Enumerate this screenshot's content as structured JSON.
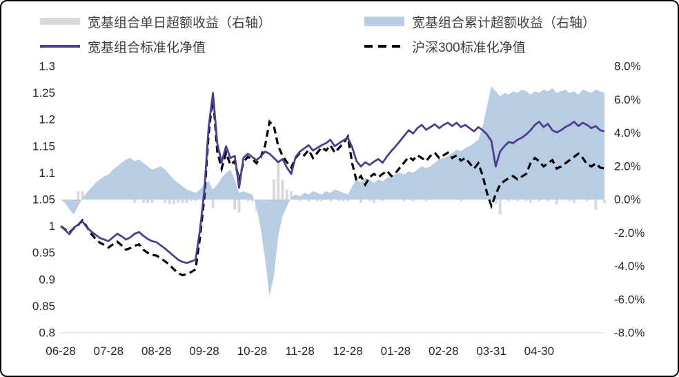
{
  "legend": {
    "items": [
      {
        "label": "宽基组合单日超额收益（右轴）",
        "type": "bar",
        "color": "#d9d9d9"
      },
      {
        "label": "宽基组合累计超额收益（右轴）",
        "type": "area",
        "color": "#b8cce4"
      },
      {
        "label": "宽基组合标准化净值",
        "type": "line",
        "color": "#4f3d8f"
      },
      {
        "label": "沪深300标准化净值",
        "type": "dashed",
        "color": "#000000"
      }
    ]
  },
  "chart_data": {
    "type": "combo",
    "grid": false,
    "legend_position": "top",
    "x_tick_labels": [
      "06-28",
      "07-28",
      "08-28",
      "09-28",
      "10-28",
      "11-28",
      "12-28",
      "01-28",
      "02-28",
      "03-31",
      "04-30"
    ],
    "x_tick_indices": [
      0,
      11,
      22,
      33,
      44,
      55,
      66,
      77,
      88,
      99,
      110
    ],
    "left_axis": {
      "min": 0.8,
      "max": 1.3,
      "tick_values": [
        1.3,
        1.25,
        1.2,
        1.15,
        1.1,
        1.05,
        1,
        0.95,
        0.9,
        0.85,
        0.8
      ],
      "tick_labels": [
        "1.3",
        "1.25",
        "1.2",
        "1.15",
        "1.1",
        "1.05",
        "1",
        "0.95",
        "0.9",
        "0.85",
        "0.8"
      ]
    },
    "right_axis": {
      "min": -8,
      "max": 8,
      "tick_values": [
        8,
        6,
        4,
        2,
        0,
        -2,
        -4,
        -6,
        -8
      ],
      "tick_labels": [
        "8.0%",
        "6.0%",
        "4.0%",
        "2.0%",
        "0.0%",
        "-2.0%",
        "-4.0%",
        "-6.0%",
        "-8.0%"
      ]
    },
    "series": [
      {
        "name": "宽基组合单日超额收益（右轴）",
        "type": "bar",
        "axis": "right",
        "color": "#d9d9d9",
        "values": [
          0.0,
          -0.2,
          -0.4,
          -0.3,
          0.5,
          0.5,
          0.3,
          0.3,
          0.3,
          0.2,
          0.2,
          0.1,
          0.3,
          0.2,
          0.2,
          0.2,
          0.1,
          -0.2,
          0.1,
          -0.2,
          -0.2,
          -0.2,
          0.1,
          0.1,
          -0.2,
          -0.3,
          -0.3,
          -0.2,
          -0.2,
          -0.2,
          -0.1,
          -0.1,
          0.2,
          0.3,
          0.2,
          -0.5,
          0.3,
          0.4,
          0.3,
          0.2,
          -0.6,
          -0.8,
          0.1,
          -0.1,
          -0.1,
          -0.7,
          -1.4,
          -1.8,
          -2.2,
          1.2,
          2.4,
          1.2,
          0.6,
          0.5,
          0.2,
          -0.1,
          0.2,
          -0.1,
          0.2,
          -0.1,
          -0.1,
          0.2,
          -0.1,
          0.2,
          -0.1,
          -0.1,
          -0.1,
          0.5,
          0.4,
          -0.2,
          0.3,
          -0.1,
          -0.2,
          0.2,
          -0.1,
          0.2,
          0.1,
          0.1,
          0.1,
          -0.1,
          0.2,
          -0.1,
          0.2,
          0.2,
          -0.1,
          0.1,
          0.2,
          0.2,
          0.1,
          0.1,
          0.2,
          0.2,
          -0.1,
          0.2,
          0.1,
          0.2,
          0.2,
          0.8,
          1.2,
          1.2,
          -0.3,
          -0.9,
          0.2,
          -0.1,
          0.2,
          -0.1,
          0.2,
          -0.1,
          -0.2,
          0.2,
          -0.1,
          0.2,
          -0.1,
          0.2,
          -0.3,
          0.1,
          0.2,
          -0.1,
          -0.2,
          0.2,
          0.3,
          -0.1,
          0.2,
          -0.6,
          0.8,
          -0.2
        ]
      },
      {
        "name": "宽基组合累计超额收益（右轴）",
        "type": "area",
        "axis": "right",
        "color": "#b8cce4",
        "values": [
          0.0,
          -0.2,
          -0.6,
          -0.9,
          -0.4,
          0.1,
          0.4,
          0.7,
          1.0,
          1.2,
          1.4,
          1.5,
          1.8,
          2.0,
          2.2,
          2.4,
          2.5,
          2.3,
          2.4,
          2.2,
          2.0,
          1.8,
          1.9,
          2.0,
          1.8,
          1.5,
          1.2,
          1.0,
          0.8,
          0.6,
          0.5,
          0.4,
          0.6,
          0.9,
          1.1,
          0.6,
          0.9,
          1.3,
          1.6,
          1.8,
          1.2,
          0.4,
          0.5,
          0.4,
          0.3,
          -0.4,
          -1.8,
          -3.6,
          -5.8,
          -4.6,
          -2.2,
          -1.0,
          -0.4,
          0.1,
          0.3,
          0.2,
          0.4,
          0.3,
          0.5,
          0.4,
          0.3,
          0.5,
          0.4,
          0.6,
          0.5,
          0.4,
          0.3,
          0.8,
          1.2,
          1.0,
          1.3,
          1.2,
          1.0,
          1.2,
          1.1,
          1.3,
          1.4,
          1.5,
          1.6,
          1.5,
          1.7,
          1.6,
          1.8,
          2.0,
          1.9,
          2.0,
          2.2,
          2.4,
          2.5,
          2.6,
          2.8,
          3.0,
          2.9,
          3.1,
          3.2,
          3.4,
          3.6,
          4.4,
          5.6,
          6.8,
          6.5,
          6.2,
          6.4,
          6.3,
          6.5,
          6.4,
          6.6,
          6.5,
          6.3,
          6.5,
          6.4,
          6.6,
          6.5,
          6.7,
          6.4,
          6.5,
          6.6,
          6.4,
          6.5,
          6.3,
          6.6,
          6.5,
          6.4,
          6.6,
          6.5,
          6.4
        ]
      },
      {
        "name": "宽基组合标准化净值",
        "type": "line",
        "axis": "left",
        "color": "#4f3d8f",
        "values": [
          1.0,
          0.993,
          0.985,
          0.997,
          1.003,
          1.009,
          0.998,
          0.99,
          0.984,
          0.978,
          0.975,
          0.972,
          0.979,
          0.986,
          0.981,
          0.975,
          0.979,
          0.986,
          0.989,
          0.982,
          0.976,
          0.972,
          0.97,
          0.964,
          0.958,
          0.951,
          0.944,
          0.937,
          0.933,
          0.931,
          0.934,
          0.937,
          0.992,
          1.065,
          1.185,
          1.25,
          1.155,
          1.12,
          1.15,
          1.128,
          1.132,
          1.072,
          1.128,
          1.136,
          1.13,
          1.124,
          1.131,
          1.14,
          1.136,
          1.128,
          1.12,
          1.126,
          1.11,
          1.098,
          1.13,
          1.14,
          1.146,
          1.152,
          1.142,
          1.147,
          1.152,
          1.156,
          1.162,
          1.15,
          1.156,
          1.161,
          1.166,
          1.148,
          1.122,
          1.112,
          1.12,
          1.115,
          1.121,
          1.126,
          1.119,
          1.131,
          1.141,
          1.15,
          1.16,
          1.17,
          1.18,
          1.174,
          1.184,
          1.19,
          1.181,
          1.186,
          1.191,
          1.184,
          1.19,
          1.194,
          1.188,
          1.194,
          1.186,
          1.19,
          1.184,
          1.178,
          1.186,
          1.18,
          1.172,
          1.16,
          1.112,
          1.14,
          1.15,
          1.158,
          1.156,
          1.162,
          1.166,
          1.172,
          1.18,
          1.19,
          1.196,
          1.186,
          1.192,
          1.18,
          1.176,
          1.18,
          1.186,
          1.19,
          1.196,
          1.188,
          1.194,
          1.19,
          1.184,
          1.188,
          1.18,
          1.178
        ]
      },
      {
        "name": "沪深300标准化净值",
        "type": "dashed-line",
        "axis": "left",
        "color": "#000000",
        "values": [
          1.0,
          0.994,
          0.988,
          0.996,
          1.002,
          1.011,
          0.999,
          0.986,
          0.976,
          0.969,
          0.965,
          0.96,
          0.966,
          0.971,
          0.964,
          0.956,
          0.959,
          0.963,
          0.966,
          0.956,
          0.95,
          0.946,
          0.945,
          0.94,
          0.934,
          0.928,
          0.919,
          0.912,
          0.908,
          0.91,
          0.914,
          0.919,
          0.978,
          1.052,
          1.172,
          1.245,
          1.14,
          1.108,
          1.138,
          1.115,
          1.122,
          1.086,
          1.12,
          1.13,
          1.126,
          1.118,
          1.13,
          1.152,
          1.196,
          1.188,
          1.15,
          1.132,
          1.12,
          1.11,
          1.128,
          1.138,
          1.133,
          1.143,
          1.128,
          1.138,
          1.148,
          1.142,
          1.152,
          1.138,
          1.147,
          1.156,
          1.168,
          1.118,
          1.085,
          1.094,
          1.078,
          1.092,
          1.098,
          1.092,
          1.098,
          1.104,
          1.094,
          1.1,
          1.11,
          1.12,
          1.13,
          1.124,
          1.133,
          1.128,
          1.122,
          1.132,
          1.138,
          1.128,
          1.133,
          1.138,
          1.128,
          1.133,
          1.123,
          1.128,
          1.118,
          1.108,
          1.118,
          1.095,
          1.062,
          1.038,
          1.06,
          1.078,
          1.085,
          1.09,
          1.094,
          1.088,
          1.093,
          1.098,
          1.118,
          1.128,
          1.122,
          1.112,
          1.118,
          1.124,
          1.108,
          1.112,
          1.118,
          1.124,
          1.13,
          1.136,
          1.128,
          1.116,
          1.112,
          1.118,
          1.11,
          1.108
        ]
      }
    ]
  }
}
